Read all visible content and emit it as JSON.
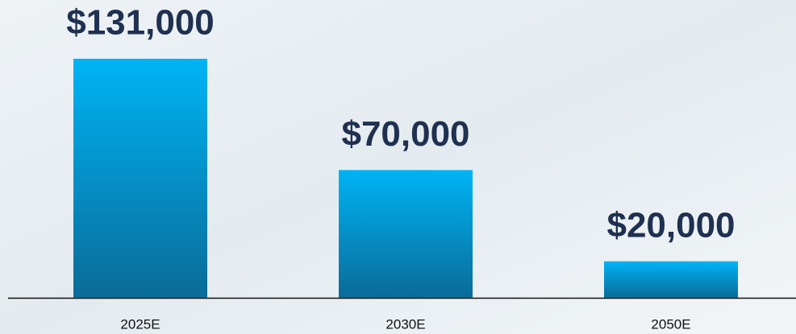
{
  "chart_data": {
    "type": "bar",
    "categories": [
      "2025E",
      "2030E",
      "2050E"
    ],
    "values": [
      131000,
      70000,
      20000
    ],
    "value_labels": [
      "$131,000",
      "$70,000",
      "$20,000"
    ],
    "color": "#00b4f5"
  }
}
